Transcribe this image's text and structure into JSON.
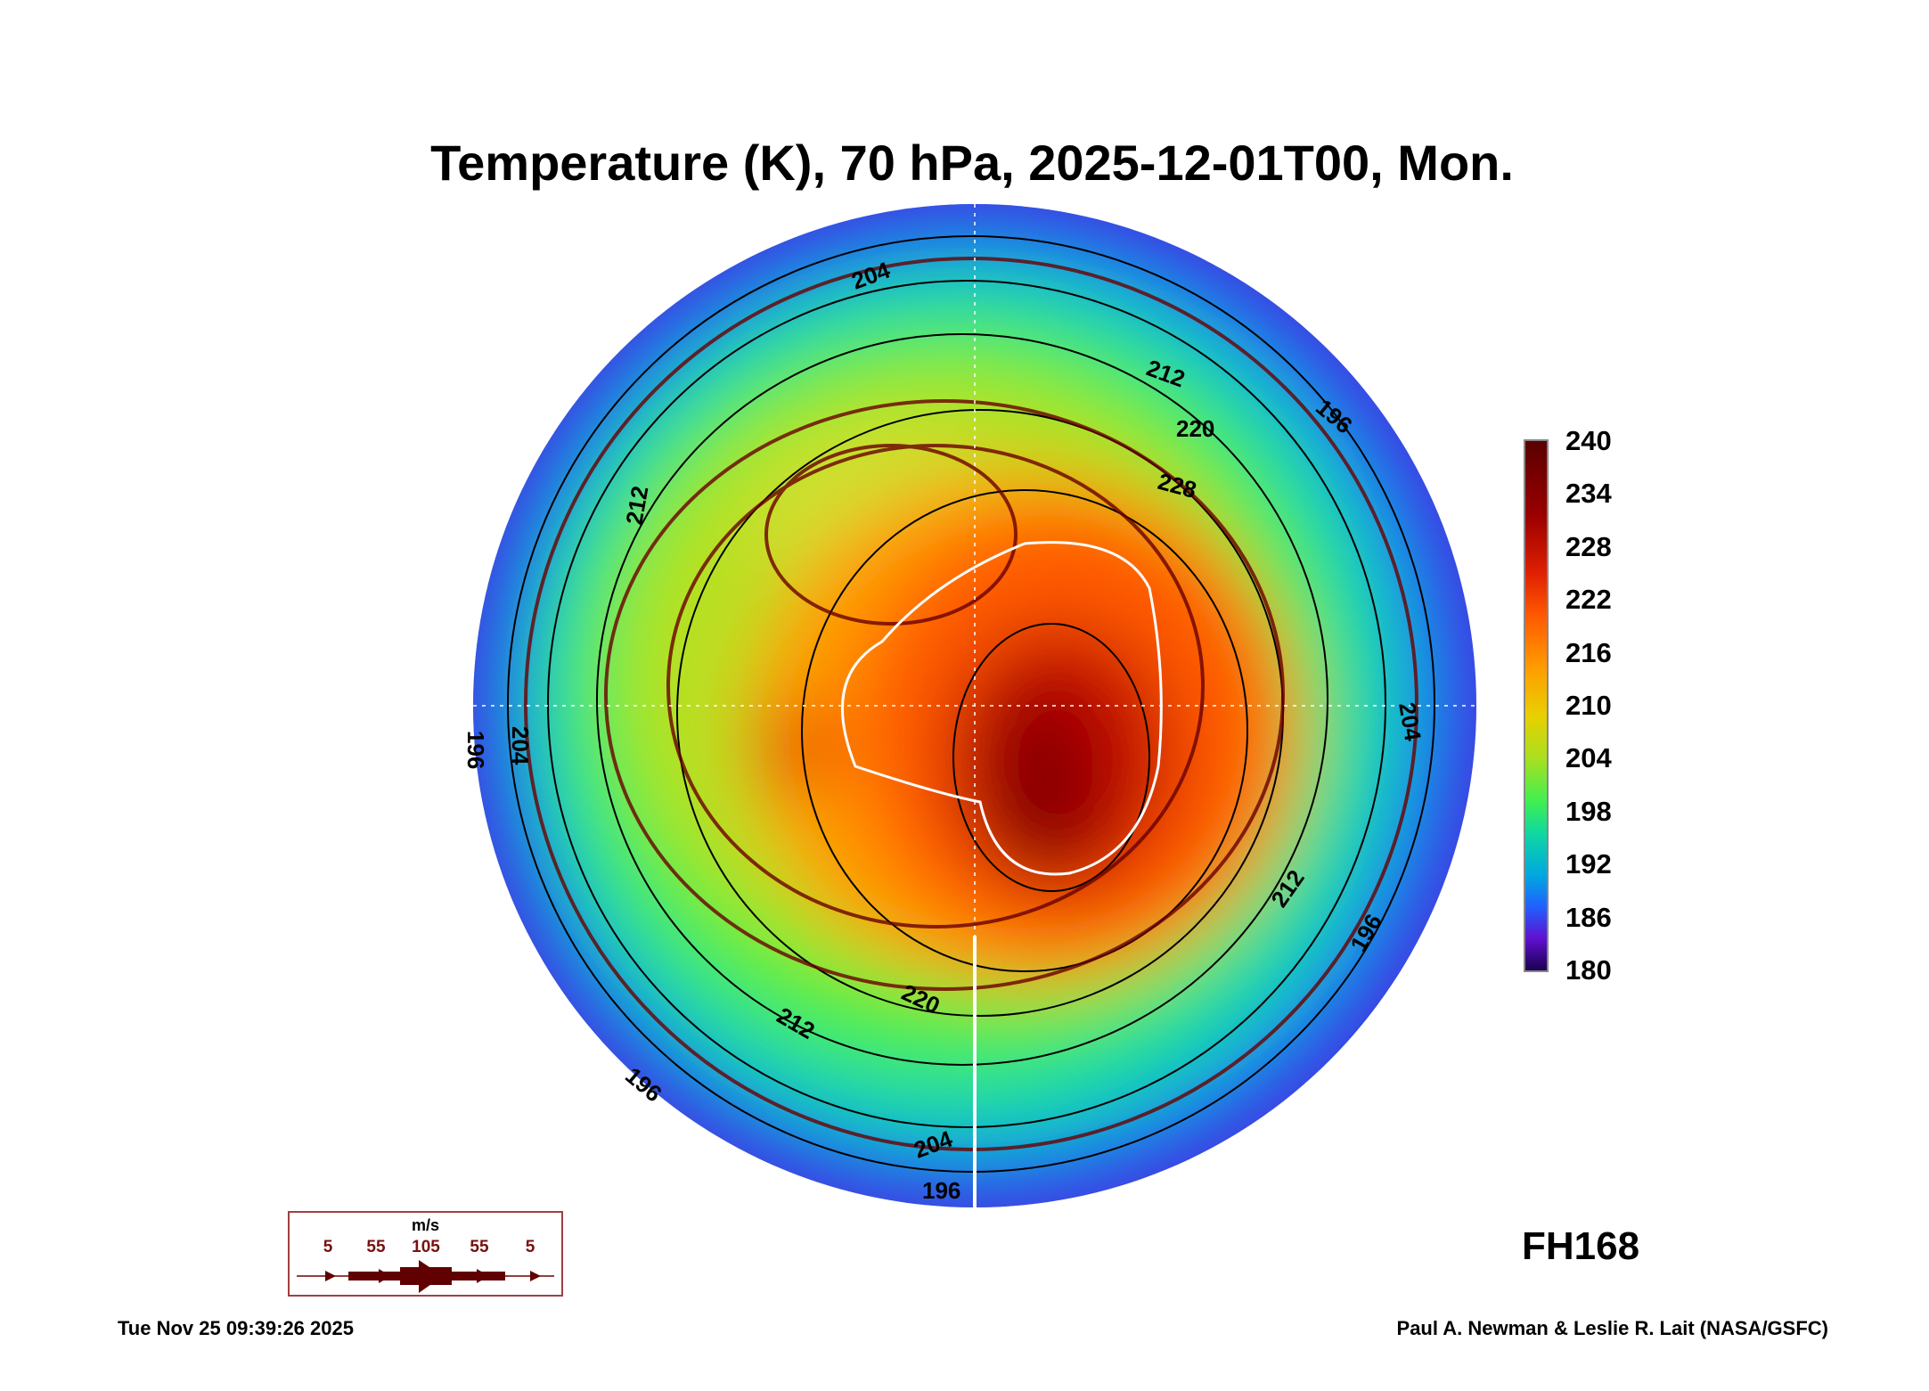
{
  "chart_data": {
    "type": "heatmap",
    "title": "Temperature (K), 70 hPa, 2025-12-01T00, Mon.",
    "projection": "polar stereographic, south pole",
    "colorbar": {
      "min": 180,
      "max": 240,
      "ticks": [
        "240",
        "234",
        "228",
        "222",
        "216",
        "210",
        "204",
        "198",
        "192",
        "186",
        "180"
      ]
    },
    "contour_labels": [
      "204",
      "212",
      "220",
      "228",
      "212",
      "196",
      "204",
      "196",
      "212",
      "220",
      "204",
      "196",
      "196",
      "212",
      "196",
      "204"
    ],
    "wind_legend": {
      "unit": "m/s",
      "values": [
        "5",
        "55",
        "105",
        "55",
        "5"
      ]
    },
    "forecast_hour": "FH168"
  },
  "footer": {
    "date": "Tue Nov 25 09:39:26 2025",
    "credit": "Paul A. Newman & Leslie R. Lait (NASA/GSFC)"
  }
}
